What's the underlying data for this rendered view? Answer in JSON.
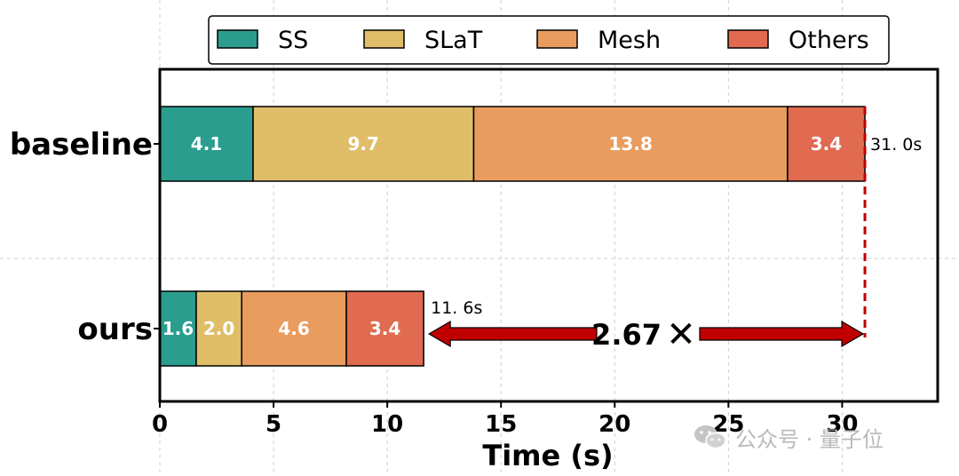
{
  "chart_data": {
    "type": "bar",
    "orientation": "horizontal",
    "stacked": true,
    "categories": [
      "baseline",
      "ours"
    ],
    "series": [
      {
        "name": "SS",
        "values": [
          4.1,
          1.6
        ],
        "color": "#2a9d8f"
      },
      {
        "name": "SLaT",
        "values": [
          9.7,
          2.0
        ],
        "color": "#e0bd68"
      },
      {
        "name": "Mesh",
        "values": [
          13.8,
          4.6
        ],
        "color": "#e89c5e"
      },
      {
        "name": "Others",
        "values": [
          3.4,
          3.4
        ],
        "color": "#e06b50"
      }
    ],
    "totals": [
      "31. 0s",
      "11. 6s"
    ],
    "xlabel": "Time (s)",
    "ylabel": "",
    "xlim": [
      0,
      34.2
    ],
    "xticks": [
      0,
      5,
      10,
      15,
      20,
      25,
      30
    ],
    "grid": true,
    "legend_position": "top",
    "annotation": {
      "text": "2.67",
      "symbol": "✕",
      "from": 11.6,
      "to": 31.0
    }
  },
  "watermark": {
    "text": "公众号 · 量子位",
    "icon": "wechat-icon"
  }
}
